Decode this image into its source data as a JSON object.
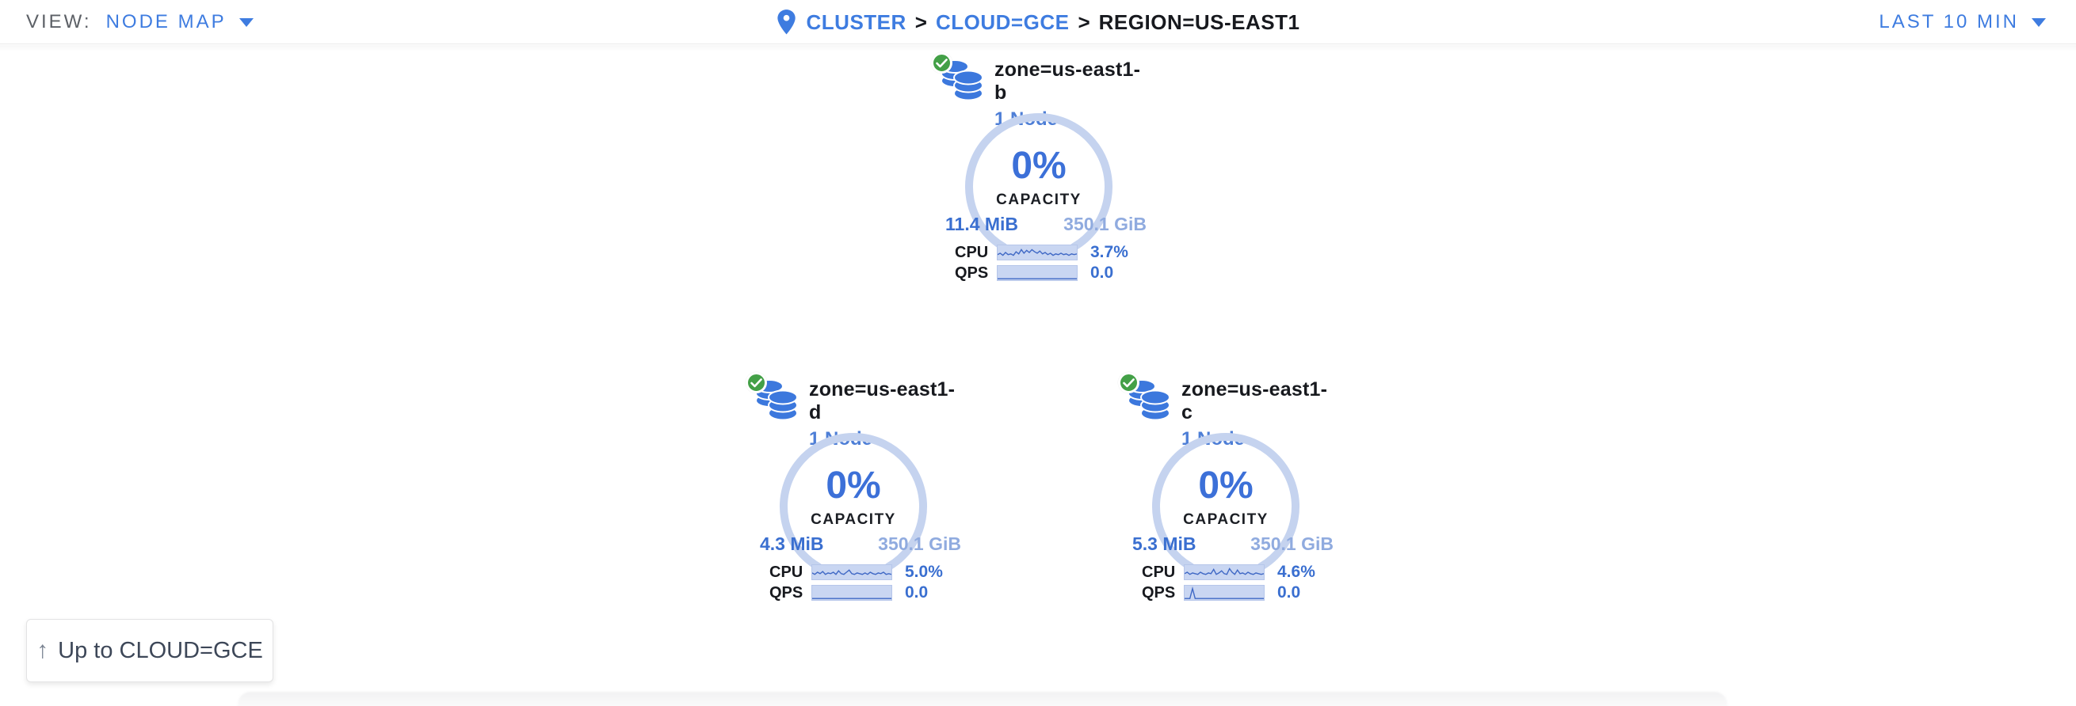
{
  "header": {
    "view_label": "VIEW:",
    "view_value": "NODE MAP",
    "time_range": "LAST 10 MIN",
    "breadcrumb": {
      "separator": ">",
      "items": [
        {
          "label": "CLUSTER"
        },
        {
          "label": "CLOUD=GCE"
        },
        {
          "label": "REGION=US-EAST1"
        }
      ]
    }
  },
  "icons": {
    "breadcrumb_pin": "map-pin",
    "zone_icon": "database-stack",
    "status_icon": "check-circle",
    "dropdown_caret": "chevron-down",
    "up_arrow": "arrow-up"
  },
  "colors": {
    "link_blue": "#3e7ce0",
    "value_blue": "#3a6fd0",
    "gauge_arc": "#c5d3ef",
    "spark_fill": "#c9d6f2",
    "spark_line": "#3f68c5",
    "status_green": "#43a047",
    "db_icon_blue": "#3c78dd",
    "dark_text": "#17191e"
  },
  "zones": [
    {
      "name": "zone=us-east1-b",
      "node_count": "1 Node",
      "capacity_pct": "0%",
      "capacity_label": "CAPACITY",
      "used": "11.4 MiB",
      "total": "350.1 GiB",
      "cpu_label": "CPU",
      "cpu_value": "3.7%",
      "qps_label": "QPS",
      "qps_value": "0.0",
      "cpu_spark": [
        13,
        11,
        14,
        10,
        13,
        12,
        14,
        9,
        12,
        6,
        11,
        7,
        10,
        6,
        9,
        11,
        8,
        12,
        10,
        13,
        11,
        14,
        12,
        13,
        11,
        13,
        12,
        14,
        12,
        13,
        12
      ],
      "qps_spark": [
        18,
        18,
        18,
        18,
        18,
        18,
        18,
        18,
        18,
        18,
        18,
        18,
        18,
        18,
        18,
        18,
        18,
        18,
        18,
        18,
        18,
        18,
        18,
        18,
        18,
        18,
        18,
        18,
        18,
        18,
        18
      ]
    },
    {
      "name": "zone=us-east1-d",
      "node_count": "1 Node",
      "capacity_pct": "0%",
      "capacity_label": "CAPACITY",
      "used": "4.3 MiB",
      "total": "350.1 GiB",
      "cpu_label": "CPU",
      "cpu_value": "5.0%",
      "qps_label": "QPS",
      "qps_value": "0.0",
      "cpu_spark": [
        11,
        13,
        10,
        12,
        9,
        13,
        11,
        12,
        10,
        13,
        8,
        12,
        13,
        10,
        7,
        12,
        13,
        11,
        12,
        13,
        11,
        13,
        10,
        12,
        13,
        11,
        12,
        10,
        13,
        12,
        13
      ],
      "qps_spark": [
        18,
        18,
        18,
        18,
        18,
        18,
        18,
        18,
        18,
        18,
        18,
        18,
        18,
        18,
        18,
        18,
        18,
        18,
        18,
        18,
        18,
        18,
        18,
        18,
        18,
        18,
        18,
        18,
        18,
        18,
        18
      ]
    },
    {
      "name": "zone=us-east1-c",
      "node_count": "1 Node",
      "capacity_pct": "0%",
      "capacity_label": "CAPACITY",
      "used": "5.3 MiB",
      "total": "350.1 GiB",
      "cpu_label": "CPU",
      "cpu_value": "4.6%",
      "qps_label": "QPS",
      "qps_value": "0.0",
      "cpu_spark": [
        12,
        10,
        13,
        11,
        12,
        13,
        10,
        12,
        13,
        11,
        12,
        6,
        13,
        11,
        8,
        12,
        13,
        5,
        10,
        13,
        7,
        12,
        11,
        13,
        10,
        12,
        13,
        11,
        12,
        13,
        12
      ],
      "qps_spark": [
        18,
        18,
        18,
        4,
        18,
        18,
        18,
        18,
        18,
        18,
        18,
        18,
        18,
        18,
        18,
        18,
        18,
        18,
        18,
        18,
        18,
        18,
        18,
        18,
        18,
        18,
        18,
        18,
        18,
        18,
        18
      ]
    }
  ],
  "up_button": {
    "arrow": "↑",
    "label": "Up to CLOUD=GCE"
  }
}
